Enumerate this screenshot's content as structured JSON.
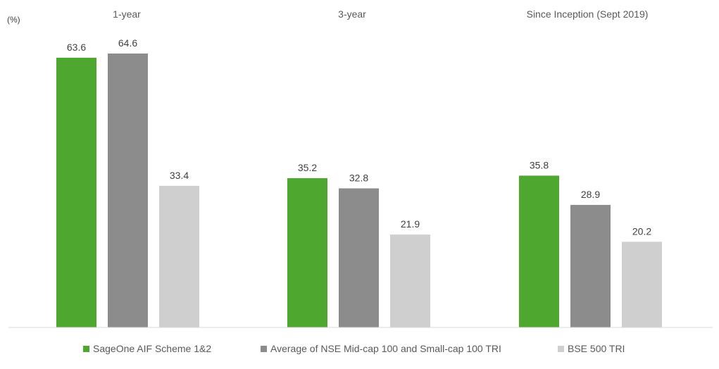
{
  "chart_data": {
    "type": "bar",
    "unit_label": "(%)",
    "categories": [
      "1-year",
      "3-year",
      "Since Inception (Sept 2019)"
    ],
    "series": [
      {
        "name": "SageOne AIF Scheme 1&2",
        "color": "#4ea72e",
        "values": [
          63.6,
          35.2,
          35.8
        ]
      },
      {
        "name": "Average of NSE Mid-cap 100 and Small-cap 100 TRI",
        "color": "#8c8c8c",
        "values": [
          64.6,
          32.8,
          28.9
        ]
      },
      {
        "name": "BSE 500 TRI",
        "color": "#cfcfcf",
        "values": [
          33.4,
          21.9,
          20.2
        ]
      }
    ],
    "ylim": [
      0,
      64.6
    ],
    "grid": false,
    "legend_position": "bottom",
    "data_labels": true
  }
}
